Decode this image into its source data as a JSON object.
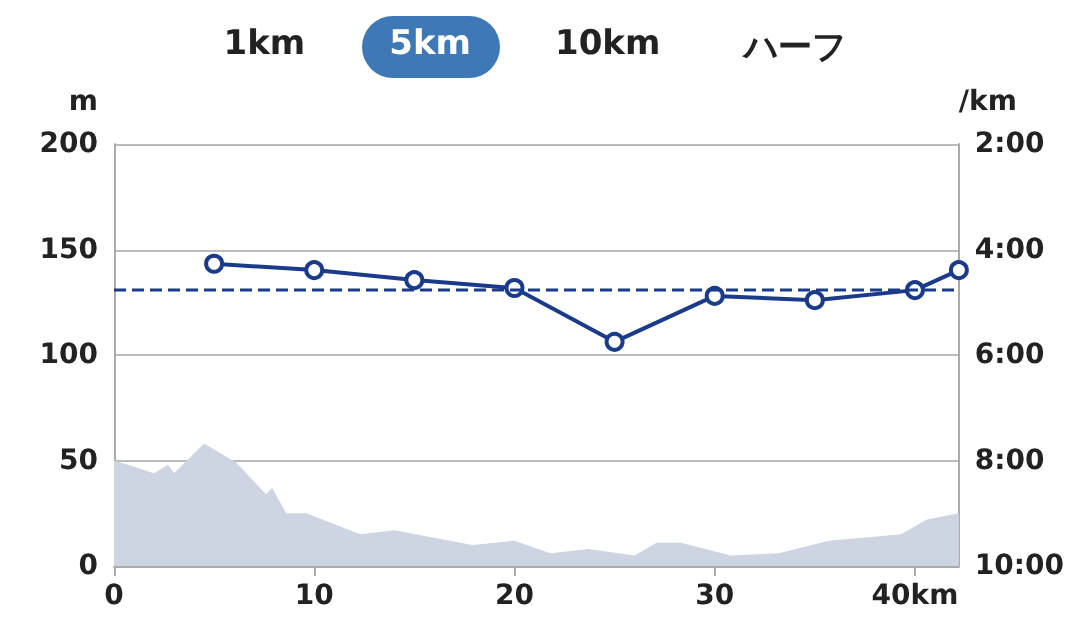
{
  "chart_data": {
    "type": "line",
    "annotations": [
      "1km",
      "5km",
      "10km",
      "ハーフ"
    ],
    "ylabel": "m",
    "y2label": "/km",
    "xlim": [
      0,
      42.195
    ],
    "xticks": [
      0,
      10,
      20,
      30,
      {
        "value": 40,
        "label": "40km"
      }
    ],
    "ylim": [
      0,
      200
    ],
    "yticks": [
      0,
      50,
      100,
      150,
      200
    ],
    "y2lim": [
      10,
      2
    ],
    "y2ticks": [
      {
        "value": 2,
        "label": "2:00"
      },
      {
        "value": 4,
        "label": "4:00"
      },
      {
        "value": 6,
        "label": "6:00"
      },
      {
        "value": 8,
        "label": "8:00"
      },
      {
        "value": 10,
        "label": "10:00"
      }
    ],
    "grid": "y",
    "line_style": "solid",
    "series": [
      {
        "type": "area",
        "color": "#cdd4e2",
        "x": [
          0,
          1,
          2,
          2.7,
          3,
          4.5,
          6.1,
          7.6,
          7.9,
          8.6,
          9.6,
          12.3,
          14,
          17.9,
          20,
          21.8,
          23.7,
          26,
          27.1,
          28.3,
          30.8,
          33.2,
          35.7,
          39.3,
          40.6,
          42.195
        ],
        "values": [
          50,
          47,
          44,
          48,
          44,
          58,
          49,
          34,
          37,
          25,
          25,
          15,
          17,
          10,
          12,
          6,
          8,
          5,
          11,
          11,
          5,
          6,
          12,
          15,
          22,
          25
        ]
      },
      {
        "marker": "circle",
        "axis": "y2",
        "color": "#1a3a8a",
        "x": [
          5,
          10,
          15,
          20,
          25,
          30,
          35,
          40,
          42.195
        ],
        "values": [
          4.27,
          4.39,
          4.58,
          4.73,
          5.75,
          4.88,
          4.96,
          4.77,
          4.39
        ]
      }
    ],
    "ref_lines": [
      {
        "axis": "y2",
        "value": 4.77,
        "color": "#1a3a8a",
        "line_style": "dashed"
      }
    ]
  }
}
